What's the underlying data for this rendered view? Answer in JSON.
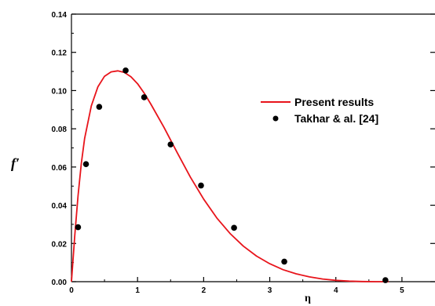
{
  "chart_data": {
    "type": "line",
    "title": "",
    "xlabel": "η",
    "ylabel": "f′",
    "xlim": [
      0,
      5.5
    ],
    "ylim": [
      0,
      0.14
    ],
    "x_ticks": [
      0,
      1,
      2,
      3,
      4,
      5
    ],
    "x_tick_labels": [
      "0",
      "1",
      "2",
      "3",
      "4",
      "5"
    ],
    "y_ticks": [
      0,
      0.02,
      0.04,
      0.06,
      0.08,
      0.1,
      0.12,
      0.14
    ],
    "y_tick_labels": [
      "0.00",
      "0.02",
      "0.04",
      "0.06",
      "0.08",
      "0.10",
      "0.12",
      "0.14"
    ],
    "grid": false,
    "legend_position": "center-right",
    "series": [
      {
        "name": "Present results",
        "kind": "line",
        "color": "#e8141b",
        "x": [
          0,
          0.05,
          0.1,
          0.15,
          0.2,
          0.3,
          0.4,
          0.5,
          0.6,
          0.7,
          0.8,
          0.9,
          1.0,
          1.1,
          1.2,
          1.4,
          1.6,
          1.8,
          2.0,
          2.2,
          2.4,
          2.6,
          2.8,
          3.0,
          3.2,
          3.4,
          3.6,
          3.8,
          4.0,
          4.2,
          4.4,
          4.6,
          4.8
        ],
        "y": [
          0,
          0.024,
          0.045,
          0.062,
          0.075,
          0.092,
          0.102,
          0.1075,
          0.1098,
          0.1103,
          0.1095,
          0.1072,
          0.1036,
          0.0987,
          0.093,
          0.0807,
          0.0675,
          0.0547,
          0.0432,
          0.0333,
          0.0252,
          0.0186,
          0.0134,
          0.0094,
          0.0063,
          0.0041,
          0.0025,
          0.0014,
          0.0007,
          0.0003,
          0.0001,
          0,
          0
        ]
      },
      {
        "name": "Takhar & al. [24]",
        "kind": "scatter",
        "color": "#000000",
        "x": [
          0.1,
          0.22,
          0.42,
          0.82,
          1.1,
          1.5,
          1.96,
          2.46,
          3.22,
          4.75
        ],
        "y": [
          0.0285,
          0.0615,
          0.0915,
          0.1105,
          0.0965,
          0.0718,
          0.0503,
          0.0282,
          0.0105,
          0.0008
        ]
      }
    ]
  }
}
